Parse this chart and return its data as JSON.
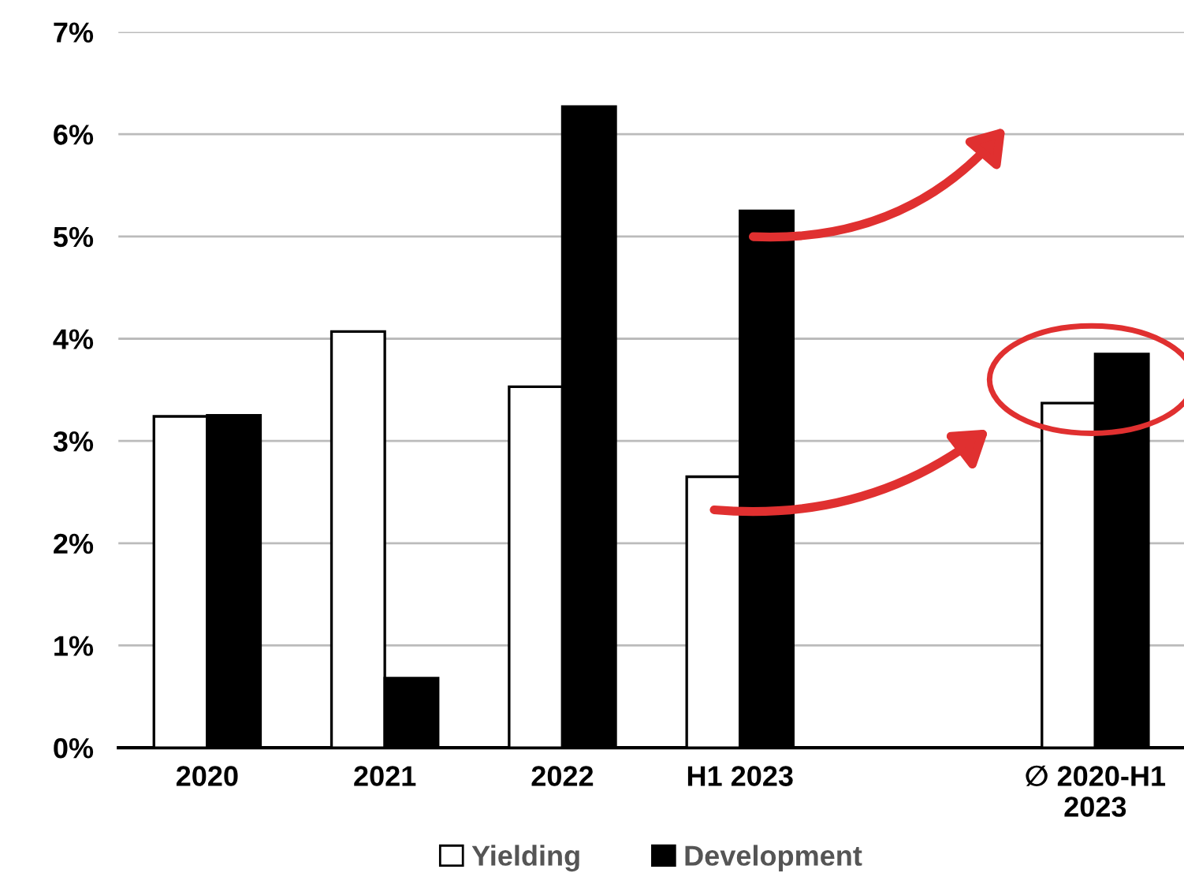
{
  "chart_data": {
    "type": "bar",
    "categories": [
      "2020",
      "2021",
      "2022",
      "H1 2023",
      null,
      "∅ 2020-H1\n2023"
    ],
    "series": [
      {
        "name": "Yielding",
        "color": "#ffffff",
        "values": [
          3.24,
          4.07,
          3.53,
          2.65,
          null,
          3.37
        ]
      },
      {
        "name": "Development",
        "color": "#000000",
        "values": [
          3.25,
          0.68,
          6.27,
          5.25,
          null,
          3.85
        ]
      }
    ],
    "ylim": [
      0,
      7
    ],
    "yticks": [
      {
        "value": 0,
        "label": "0%"
      },
      {
        "value": 1,
        "label": "1%"
      },
      {
        "value": 2,
        "label": "2%"
      },
      {
        "value": 3,
        "label": "3%"
      },
      {
        "value": 4,
        "label": "4%"
      },
      {
        "value": 5,
        "label": "5%"
      },
      {
        "value": 6,
        "label": "6%"
      },
      {
        "value": 7,
        "label": "7%"
      }
    ],
    "grid": "y",
    "legend": "bottom"
  }
}
